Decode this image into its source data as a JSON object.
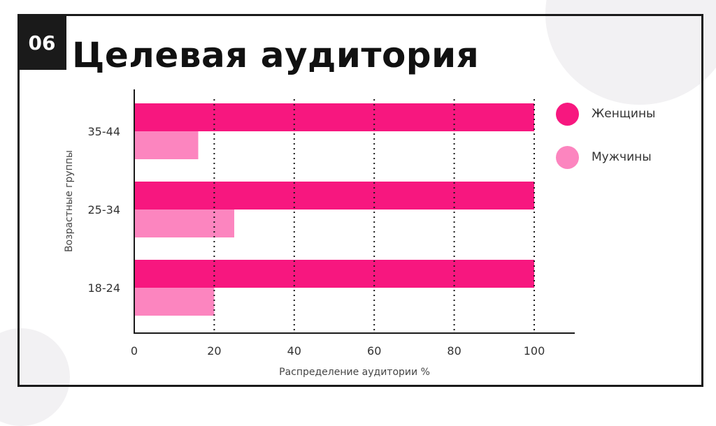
{
  "slide": {
    "number": "06",
    "title": "Целевая аудитория"
  },
  "colors": {
    "women": "#f7177f",
    "men": "#fc85bf",
    "frame": "#1a1a1a",
    "text": "#333333"
  },
  "legend": [
    {
      "label": "Женщины",
      "color": "#f7177f"
    },
    {
      "label": "Мужчины",
      "color": "#fc85bf"
    }
  ],
  "chart_data": {
    "type": "bar",
    "orientation": "horizontal",
    "categories": [
      "35-44",
      "25-34",
      "18-24"
    ],
    "series": [
      {
        "name": "Женщины",
        "values": [
          100,
          100,
          100
        ]
      },
      {
        "name": "Мужчины",
        "values": [
          16,
          25,
          20
        ]
      }
    ],
    "xlabel": "Распределение аудитории %",
    "ylabel": "Возрастные группы",
    "xlim": [
      0,
      100
    ],
    "xticks": [
      0,
      20,
      40,
      60,
      80,
      100
    ],
    "grid": "vertical dotted",
    "legend_position": "right"
  }
}
